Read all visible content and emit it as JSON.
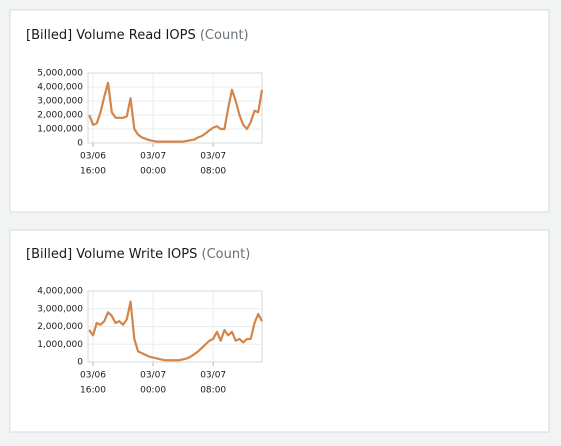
{
  "chart_data": [
    {
      "type": "line",
      "title": "[Billed] Volume Read IOPS",
      "unit": "(Count)",
      "x": [
        "03/06 15:30",
        "03/06 16:00",
        "03/06 16:30",
        "03/06 17:00",
        "03/06 17:30",
        "03/06 18:00",
        "03/06 18:30",
        "03/06 19:00",
        "03/06 19:30",
        "03/06 20:00",
        "03/06 20:30",
        "03/06 21:00",
        "03/06 21:30",
        "03/06 22:00",
        "03/06 22:30",
        "03/06 23:00",
        "03/06 23:30",
        "03/07 00:00",
        "03/07 00:30",
        "03/07 01:00",
        "03/07 01:30",
        "03/07 02:00",
        "03/07 02:30",
        "03/07 03:00",
        "03/07 03:30",
        "03/07 04:00",
        "03/07 04:30",
        "03/07 05:00",
        "03/07 05:30",
        "03/07 06:00",
        "03/07 06:30",
        "03/07 07:00",
        "03/07 07:30",
        "03/07 08:00",
        "03/07 08:30",
        "03/07 09:00",
        "03/07 09:30",
        "03/07 10:00",
        "03/07 10:30",
        "03/07 11:00",
        "03/07 11:30",
        "03/07 12:00",
        "03/07 12:30",
        "03/07 13:00",
        "03/07 13:30",
        "03/07 14:00",
        "03/07 14:30"
      ],
      "series": [
        {
          "color": "#d3854a",
          "values": [
            2000000,
            1300000,
            1400000,
            2200000,
            3300000,
            4300000,
            2200000,
            1800000,
            1800000,
            1800000,
            1900000,
            3200000,
            1000000,
            600000,
            400000,
            300000,
            200000,
            150000,
            100000,
            100000,
            100000,
            100000,
            100000,
            100000,
            100000,
            100000,
            150000,
            200000,
            250000,
            400000,
            500000,
            700000,
            900000,
            1100000,
            1200000,
            1000000,
            1000000,
            2500000,
            3800000,
            3000000,
            2000000,
            1300000,
            1000000,
            1500000,
            2300000,
            2200000,
            3800000
          ]
        }
      ],
      "xlim": [
        "03/06 15:20",
        "03/07 14:30"
      ],
      "xticks": [
        {
          "value": "03/06 16:00",
          "label": [
            "03/06",
            "16:00"
          ]
        },
        {
          "value": "03/07 00:00",
          "label": [
            "03/07",
            "00:00"
          ]
        },
        {
          "value": "03/07 08:00",
          "label": [
            "03/07",
            "08:00"
          ]
        }
      ],
      "ylim": [
        0,
        5000000
      ],
      "yticks": [
        0,
        {
          "value": 1000000,
          "label": "1,000,000"
        },
        {
          "value": 2000000,
          "label": "2,000,000"
        },
        {
          "value": 3000000,
          "label": "3,000,000"
        },
        {
          "value": 4000000,
          "label": "4,000,000"
        },
        {
          "value": 5000000,
          "label": "5,000,000"
        }
      ],
      "grid": true
    },
    {
      "type": "line",
      "title": "[Billed] Volume Write IOPS",
      "unit": "(Count)",
      "x": [
        "03/06 15:30",
        "03/06 16:00",
        "03/06 16:30",
        "03/06 17:00",
        "03/06 17:30",
        "03/06 18:00",
        "03/06 18:30",
        "03/06 19:00",
        "03/06 19:30",
        "03/06 20:00",
        "03/06 20:30",
        "03/06 21:00",
        "03/06 21:30",
        "03/06 22:00",
        "03/06 22:30",
        "03/06 23:00",
        "03/06 23:30",
        "03/07 00:00",
        "03/07 00:30",
        "03/07 01:00",
        "03/07 01:30",
        "03/07 02:00",
        "03/07 02:30",
        "03/07 03:00",
        "03/07 03:30",
        "03/07 04:00",
        "03/07 04:30",
        "03/07 05:00",
        "03/07 05:30",
        "03/07 06:00",
        "03/07 06:30",
        "03/07 07:00",
        "03/07 07:30",
        "03/07 08:00",
        "03/07 08:30",
        "03/07 09:00",
        "03/07 09:30",
        "03/07 10:00",
        "03/07 10:30",
        "03/07 11:00",
        "03/07 11:30",
        "03/07 12:00",
        "03/07 12:30",
        "03/07 13:00",
        "03/07 13:30",
        "03/07 14:00",
        "03/07 14:30"
      ],
      "series": [
        {
          "color": "#d3854a",
          "values": [
            1800000,
            1500000,
            2200000,
            2100000,
            2300000,
            2800000,
            2600000,
            2200000,
            2300000,
            2100000,
            2400000,
            3400000,
            1300000,
            600000,
            500000,
            400000,
            300000,
            250000,
            200000,
            150000,
            100000,
            100000,
            100000,
            100000,
            100000,
            150000,
            200000,
            300000,
            450000,
            600000,
            800000,
            1000000,
            1200000,
            1300000,
            1700000,
            1200000,
            1800000,
            1500000,
            1700000,
            1200000,
            1300000,
            1100000,
            1300000,
            1300000,
            2200000,
            2700000,
            2300000
          ]
        }
      ],
      "xlim": [
        "03/06 15:20",
        "03/07 14:30"
      ],
      "xticks": [
        {
          "value": "03/06 16:00",
          "label": [
            "03/06",
            "16:00"
          ]
        },
        {
          "value": "03/07 00:00",
          "label": [
            "03/07",
            "00:00"
          ]
        },
        {
          "value": "03/07 08:00",
          "label": [
            "03/07",
            "08:00"
          ]
        }
      ],
      "ylim": [
        0,
        4000000
      ],
      "yticks": [
        0,
        {
          "value": 1000000,
          "label": "1,000,000"
        },
        {
          "value": 2000000,
          "label": "2,000,000"
        },
        {
          "value": 3000000,
          "label": "3,000,000"
        },
        {
          "value": 4000000,
          "label": "4,000,000"
        }
      ],
      "grid": true
    }
  ]
}
